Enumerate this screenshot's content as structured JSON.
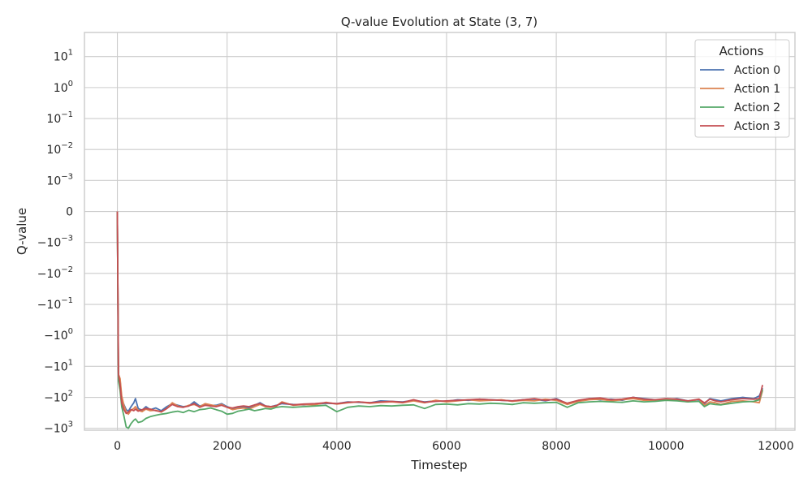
{
  "chart_data": {
    "type": "line",
    "title": "Q-value Evolution at State (3, 7)",
    "xlabel": "Timestep",
    "ylabel": "Q-value",
    "y_scale": "symlog",
    "linthresh": 0.001,
    "xlim": [
      -600,
      12350
    ],
    "ylim": [
      -1150,
      60
    ],
    "grid": true,
    "x_ticks": [
      {
        "value": 0,
        "label": "0"
      },
      {
        "value": 2000,
        "label": "2000"
      },
      {
        "value": 4000,
        "label": "4000"
      },
      {
        "value": 6000,
        "label": "6000"
      },
      {
        "value": 8000,
        "label": "8000"
      },
      {
        "value": 10000,
        "label": "10000"
      },
      {
        "value": 12000,
        "label": "12000"
      }
    ],
    "y_ticks": [
      {
        "value": 10,
        "base": "10",
        "exp": "1"
      },
      {
        "value": 1,
        "base": "10",
        "exp": "0"
      },
      {
        "value": 0.1,
        "base": "10",
        "exp": "−1"
      },
      {
        "value": 0.01,
        "base": "10",
        "exp": "−2"
      },
      {
        "value": 0.001,
        "base": "10",
        "exp": "−3"
      },
      {
        "value": 0,
        "base": "0",
        "exp": ""
      },
      {
        "value": -0.001,
        "base": "−10",
        "exp": "−3"
      },
      {
        "value": -0.01,
        "base": "−10",
        "exp": "−2"
      },
      {
        "value": -0.1,
        "base": "−10",
        "exp": "−1"
      },
      {
        "value": -1,
        "base": "−10",
        "exp": "0"
      },
      {
        "value": -10,
        "base": "−10",
        "exp": "1"
      },
      {
        "value": -100,
        "base": "−10",
        "exp": "2"
      },
      {
        "value": -1000,
        "base": "−10",
        "exp": "3"
      }
    ],
    "legend": {
      "title": "Actions",
      "position": "top-right"
    },
    "series": [
      {
        "name": "Action 0",
        "color": "#4c72b0",
        "x": [
          0,
          20,
          50,
          80,
          120,
          160,
          200,
          250,
          300,
          330,
          380,
          450,
          520,
          600,
          700,
          800,
          900,
          1000,
          1100,
          1200,
          1300,
          1400,
          1500,
          1600,
          1700,
          1800,
          1900,
          2000,
          2100,
          2200,
          2300,
          2400,
          2500,
          2600,
          2700,
          2800,
          2900,
          3000,
          3200,
          3400,
          3600,
          3800,
          4000,
          4200,
          4400,
          4600,
          4800,
          5000,
          5200,
          5400,
          5600,
          5800,
          6000,
          6200,
          6400,
          6600,
          6800,
          7000,
          7200,
          7400,
          7600,
          7800,
          8000,
          8200,
          8400,
          8600,
          8800,
          9000,
          9200,
          9400,
          9600,
          9800,
          10000,
          10200,
          10400,
          10600,
          10700,
          10800,
          10900,
          11000,
          11200,
          11400,
          11600,
          11700,
          11760
        ],
        "y": [
          0,
          -20,
          -28,
          -120,
          -170,
          -250,
          -280,
          -200,
          -150,
          -110,
          -230,
          -260,
          -200,
          -250,
          -220,
          -270,
          -200,
          -160,
          -180,
          -200,
          -190,
          -140,
          -190,
          -170,
          -185,
          -180,
          -160,
          -200,
          -230,
          -210,
          -200,
          -220,
          -180,
          -150,
          -190,
          -200,
          -180,
          -160,
          -170,
          -175,
          -165,
          -155,
          -160,
          -140,
          -145,
          -150,
          -130,
          -135,
          -140,
          -125,
          -140,
          -130,
          -135,
          -120,
          -125,
          -115,
          -120,
          -125,
          -130,
          -120,
          -115,
          -130,
          -110,
          -160,
          -130,
          -110,
          -120,
          -115,
          -125,
          -100,
          -110,
          -120,
          -120,
          -110,
          -130,
          -120,
          -160,
          -110,
          -120,
          -130,
          -110,
          -100,
          -110,
          -90,
          -50
        ]
      },
      {
        "name": "Action 1",
        "color": "#dd8452",
        "x": [
          0,
          20,
          50,
          80,
          120,
          160,
          200,
          250,
          300,
          330,
          380,
          450,
          520,
          600,
          700,
          800,
          900,
          1000,
          1100,
          1200,
          1300,
          1400,
          1500,
          1600,
          1700,
          1800,
          1900,
          2000,
          2100,
          2200,
          2300,
          2400,
          2500,
          2600,
          2700,
          2800,
          2900,
          3000,
          3200,
          3400,
          3600,
          3800,
          4000,
          4200,
          4400,
          4600,
          4800,
          5000,
          5200,
          5400,
          5600,
          5800,
          6000,
          6200,
          6400,
          6600,
          6800,
          7000,
          7200,
          7400,
          7600,
          7800,
          8000,
          8200,
          8400,
          8600,
          8800,
          9000,
          9200,
          9400,
          9600,
          9800,
          10000,
          10200,
          10400,
          10600,
          10700,
          10800,
          10900,
          11000,
          11200,
          11400,
          11600,
          11700,
          11760
        ],
        "y": [
          0,
          -18,
          -25,
          -90,
          -180,
          -300,
          -350,
          -260,
          -230,
          -200,
          -260,
          -290,
          -240,
          -270,
          -260,
          -300,
          -230,
          -150,
          -190,
          -210,
          -180,
          -170,
          -200,
          -160,
          -175,
          -190,
          -170,
          -210,
          -250,
          -230,
          -220,
          -240,
          -200,
          -170,
          -200,
          -210,
          -190,
          -140,
          -180,
          -170,
          -175,
          -145,
          -165,
          -150,
          -140,
          -155,
          -145,
          -140,
          -150,
          -130,
          -150,
          -125,
          -140,
          -130,
          -120,
          -130,
          -125,
          -120,
          -135,
          -125,
          -130,
          -115,
          -125,
          -170,
          -135,
          -120,
          -115,
          -130,
          -120,
          -110,
          -125,
          -130,
          -115,
          -125,
          -140,
          -115,
          -180,
          -140,
          -150,
          -170,
          -135,
          -130,
          -140,
          -150,
          -60
        ]
      },
      {
        "name": "Action 2",
        "color": "#55a868",
        "x": [
          0,
          20,
          50,
          80,
          120,
          160,
          200,
          250,
          300,
          330,
          380,
          450,
          520,
          600,
          700,
          800,
          900,
          1000,
          1100,
          1200,
          1300,
          1400,
          1500,
          1600,
          1700,
          1800,
          1900,
          2000,
          2100,
          2200,
          2300,
          2400,
          2500,
          2600,
          2700,
          2800,
          2900,
          3000,
          3200,
          3400,
          3600,
          3800,
          4000,
          4200,
          4400,
          4600,
          4800,
          5000,
          5200,
          5400,
          5600,
          5800,
          6000,
          6200,
          6400,
          6600,
          6800,
          7000,
          7200,
          7400,
          7600,
          7800,
          8000,
          8200,
          8400,
          8600,
          8800,
          9000,
          9200,
          9400,
          9600,
          9800,
          10000,
          10200,
          10400,
          10600,
          10700,
          10800,
          10900,
          11000,
          11200,
          11400,
          11600,
          11700,
          11760
        ],
        "y": [
          0,
          -30,
          -60,
          -200,
          -400,
          -900,
          -1000,
          -700,
          -550,
          -500,
          -650,
          -600,
          -480,
          -420,
          -380,
          -350,
          -330,
          -300,
          -280,
          -310,
          -260,
          -290,
          -250,
          -240,
          -220,
          -250,
          -280,
          -350,
          -330,
          -280,
          -260,
          -240,
          -270,
          -250,
          -230,
          -240,
          -210,
          -200,
          -210,
          -200,
          -190,
          -180,
          -290,
          -210,
          -190,
          -200,
          -185,
          -190,
          -180,
          -175,
          -230,
          -170,
          -165,
          -175,
          -160,
          -165,
          -155,
          -160,
          -170,
          -150,
          -155,
          -150,
          -145,
          -210,
          -150,
          -140,
          -135,
          -140,
          -145,
          -130,
          -140,
          -135,
          -125,
          -130,
          -140,
          -135,
          -200,
          -160,
          -170,
          -175,
          -155,
          -140,
          -135,
          -120,
          -55
        ]
      },
      {
        "name": "Action 3",
        "color": "#c44e52",
        "x": [
          0,
          20,
          50,
          80,
          120,
          160,
          200,
          250,
          300,
          330,
          380,
          450,
          520,
          600,
          700,
          800,
          900,
          1000,
          1100,
          1200,
          1300,
          1400,
          1500,
          1600,
          1700,
          1800,
          1900,
          2000,
          2100,
          2200,
          2300,
          2400,
          2500,
          2600,
          2700,
          2800,
          2900,
          3000,
          3200,
          3400,
          3600,
          3800,
          4000,
          4200,
          4400,
          4600,
          4800,
          5000,
          5200,
          5400,
          5600,
          5800,
          6000,
          6200,
          6400,
          6600,
          6800,
          7000,
          7200,
          7400,
          7600,
          7800,
          8000,
          8200,
          8400,
          8600,
          8800,
          9000,
          9200,
          9400,
          9600,
          9800,
          10000,
          10200,
          10400,
          10600,
          10700,
          10800,
          10900,
          11000,
          11200,
          11400,
          11600,
          11700,
          11760
        ],
        "y": [
          0,
          -18,
          -40,
          -150,
          -250,
          -330,
          -300,
          -250,
          -270,
          -240,
          -280,
          -250,
          -230,
          -240,
          -270,
          -290,
          -230,
          -170,
          -200,
          -210,
          -190,
          -160,
          -210,
          -180,
          -190,
          -200,
          -180,
          -210,
          -220,
          -200,
          -190,
          -200,
          -175,
          -160,
          -190,
          -200,
          -185,
          -150,
          -175,
          -165,
          -160,
          -150,
          -160,
          -145,
          -140,
          -150,
          -140,
          -135,
          -145,
          -120,
          -145,
          -135,
          -130,
          -125,
          -120,
          -115,
          -120,
          -125,
          -130,
          -120,
          -110,
          -125,
          -115,
          -155,
          -125,
          -110,
          -105,
          -120,
          -115,
          -100,
          -115,
          -120,
          -110,
          -115,
          -130,
          -115,
          -150,
          -115,
          -130,
          -140,
          -120,
          -110,
          -115,
          -110,
          -40
        ]
      }
    ]
  }
}
